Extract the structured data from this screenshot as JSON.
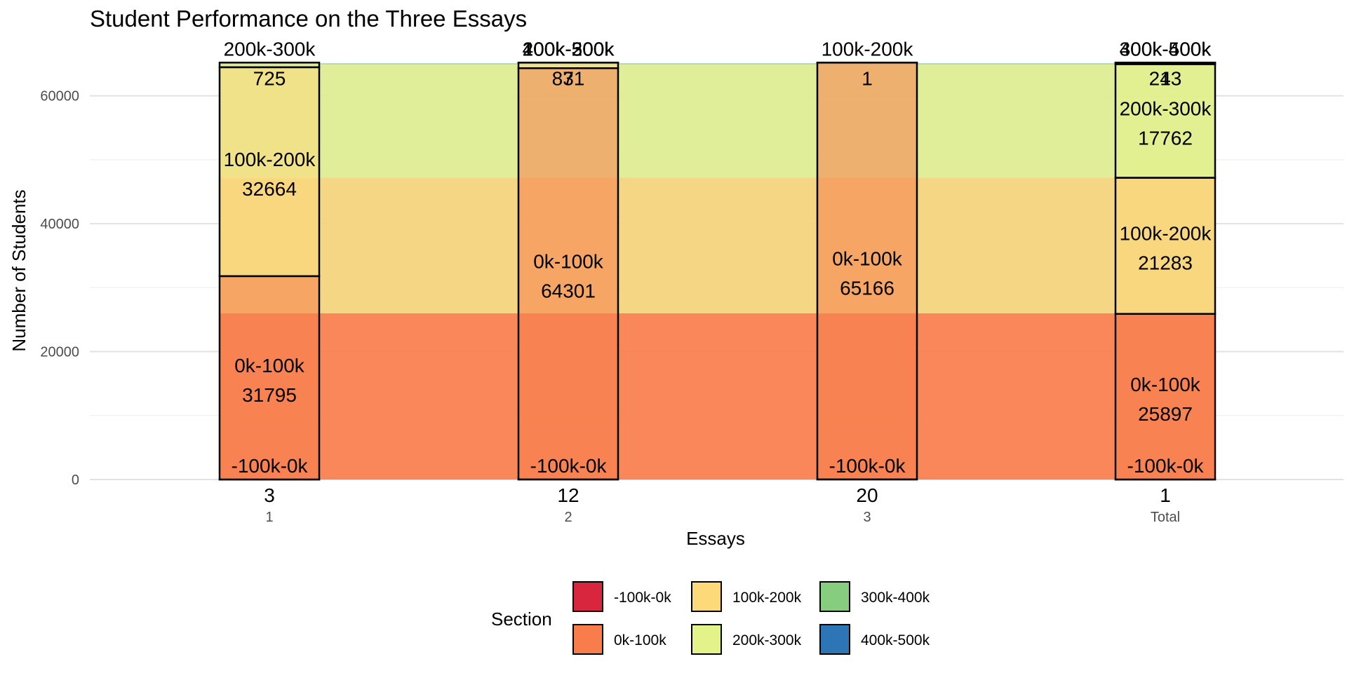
{
  "chart_data": {
    "type": "bar",
    "subtype": "stacked alluvial",
    "title": "Student Performance on the Three Essays",
    "xlabel": "Essays",
    "ylabel": "Number of Students",
    "ylim": [
      0,
      65000
    ],
    "yticks": [
      0,
      20000,
      40000,
      60000
    ],
    "grid": true,
    "legend": {
      "title": "Section",
      "position": "bottom",
      "entries": [
        {
          "name": "-100k-0k",
          "color": "#D7263D"
        },
        {
          "name": "0k-100k",
          "color": "#F87D4B"
        },
        {
          "name": "100k-200k",
          "color": "#FDD97A"
        },
        {
          "name": "200k-300k",
          "color": "#E3F38A"
        },
        {
          "name": "300k-400k",
          "color": "#86CE7E"
        },
        {
          "name": "400k-500k",
          "color": "#2E75B6"
        }
      ]
    },
    "categories": [
      "1",
      "2",
      "3",
      "Total"
    ],
    "strata": [
      {
        "category": "1",
        "stack": [
          {
            "section": "-100k-0k",
            "count": 3,
            "label": "-100k-0k",
            "sub": "3"
          },
          {
            "section": "0k-100k",
            "count": 31795,
            "label": "0k-100k",
            "sub": "31795"
          },
          {
            "section": "100k-200k",
            "count": 32664,
            "label": "100k-200k",
            "sub": "32664"
          },
          {
            "section": "200k-300k",
            "count": 725,
            "label": "200k-300k",
            "sub": "725"
          }
        ]
      },
      {
        "category": "2",
        "stack": [
          {
            "section": "-100k-0k",
            "count": 12,
            "label": "-100k-0k",
            "sub": "12"
          },
          {
            "section": "0k-100k",
            "count": 64301,
            "label": "0k-100k",
            "sub": "64301"
          },
          {
            "section": "100k-200k",
            "count": 871,
            "label": "100k-200k",
            "sub": "871"
          },
          {
            "section": "200k-300k",
            "count": 3,
            "label": "200k-300k",
            "sub": "3"
          },
          {
            "section": "400k-500k",
            "count": 0,
            "label": "400k-500k",
            "sub": ""
          }
        ]
      },
      {
        "category": "3",
        "stack": [
          {
            "section": "-100k-0k",
            "count": 20,
            "label": "-100k-0k",
            "sub": "20"
          },
          {
            "section": "0k-100k",
            "count": 65166,
            "label": "0k-100k",
            "sub": "65166"
          },
          {
            "section": "100k-200k",
            "count": 1,
            "label": "100k-200k",
            "sub": "1"
          }
        ]
      },
      {
        "category": "Total",
        "stack": [
          {
            "section": "-100k-0k",
            "count": 1,
            "label": "-100k-0k",
            "sub": "1"
          },
          {
            "section": "0k-100k",
            "count": 25897,
            "label": "0k-100k",
            "sub": "25897"
          },
          {
            "section": "100k-200k",
            "count": 21283,
            "label": "100k-200k",
            "sub": "21283"
          },
          {
            "section": "200k-300k",
            "count": 17762,
            "label": "200k-300k",
            "sub": "17762"
          },
          {
            "section": "300k-400k",
            "count": 243,
            "label": "300k-400k",
            "sub": "243"
          },
          {
            "section": "400k-500k",
            "count": 1,
            "label": "400k-500k",
            "sub": "1"
          }
        ]
      }
    ],
    "flows": [
      {
        "section": "-100k-0k",
        "color": "#F87D4B",
        "y": [
          0,
          26000
        ]
      },
      {
        "section": "100k-200k",
        "color": "#F3D27A",
        "y": [
          26000,
          47200
        ]
      },
      {
        "section": "200k-300k",
        "color": "#DDEB90",
        "y": [
          47200,
          65000
        ]
      }
    ]
  }
}
